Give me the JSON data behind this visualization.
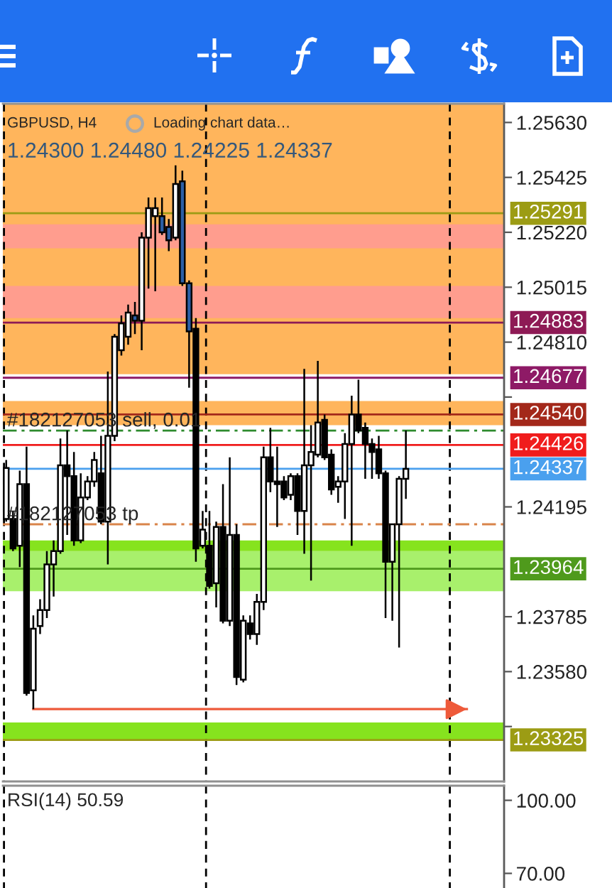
{
  "chart_data": [
    {
      "type": "candlestick",
      "title": "GBPUSD, H4",
      "subtitle": "1.24300 1.24480 1.24225 1.24337",
      "annotations": [
        "Loading chart data…",
        {
          "text": "#182127053 sell, 0.01",
          "y": 1.2448
        },
        {
          "text": "#182127053 tp",
          "y": 1.2413
        }
      ],
      "categories": [
        null,
        null,
        null,
        null,
        null,
        null,
        null,
        null,
        null,
        null,
        null,
        null,
        null,
        null,
        null,
        null,
        null,
        null,
        null,
        null,
        null,
        null,
        null,
        null,
        null,
        null,
        null,
        null,
        null,
        null,
        null,
        null,
        null,
        null,
        null,
        null,
        null,
        null,
        null,
        null,
        null,
        null,
        null,
        null,
        null,
        null,
        null,
        null,
        null,
        null,
        null,
        null,
        null,
        null,
        null,
        null,
        null,
        null,
        null,
        null,
        null,
        null,
        null,
        null,
        null,
        null,
        null,
        null,
        null,
        null,
        null,
        null,
        null,
        null
      ],
      "ohlc": [
        [
          1.2415,
          1.2437,
          1.2414,
          1.2434
        ],
        [
          1.2415,
          1.2418,
          1.2403,
          1.2404
        ],
        [
          1.2405,
          1.2433,
          1.2397,
          1.2428
        ],
        [
          1.2428,
          1.2442,
          1.2349,
          1.235
        ],
        [
          1.2351,
          1.2379,
          1.2344,
          1.2374
        ],
        [
          1.2375,
          1.2385,
          1.2372,
          1.2381
        ],
        [
          1.2381,
          1.2403,
          1.2378,
          1.2398
        ],
        [
          1.2398,
          1.2407,
          1.2386,
          1.2403
        ],
        [
          1.2403,
          1.2445,
          1.2402,
          1.2435
        ],
        [
          1.2435,
          1.2448,
          1.2409,
          1.2431
        ],
        [
          1.2431,
          1.244,
          1.2405,
          1.2407
        ],
        [
          1.2407,
          1.2432,
          1.2406,
          1.2423
        ],
        [
          1.2423,
          1.2431,
          1.2422,
          1.2429
        ],
        [
          1.2429,
          1.244,
          1.2427,
          1.2437
        ],
        [
          1.2432,
          1.2446,
          1.2413,
          1.2414
        ],
        [
          1.2414,
          1.247,
          1.2398,
          1.2446
        ],
        [
          1.2446,
          1.2484,
          1.2444,
          1.2483
        ],
        [
          1.2478,
          1.2491,
          1.2476,
          1.2488
        ],
        [
          1.2483,
          1.2495,
          1.248,
          1.2492
        ],
        [
          1.2491,
          1.2496,
          1.2484,
          1.2489
        ],
        [
          1.2489,
          1.2522,
          1.2478,
          1.252
        ],
        [
          1.252,
          1.2535,
          1.2501,
          1.2531
        ],
        [
          1.2528,
          1.2535,
          1.25,
          1.2531
        ],
        [
          1.2528,
          1.2535,
          1.2521,
          1.2522
        ],
        [
          1.2524,
          1.2527,
          1.2515,
          1.2519
        ],
        [
          1.252,
          1.2547,
          1.2519,
          1.254
        ],
        [
          1.2541,
          1.2545,
          1.2502,
          1.2503
        ],
        [
          1.2503,
          1.2504,
          1.2464,
          1.2485
        ],
        [
          1.2486,
          1.249,
          1.2399,
          1.2404
        ],
        [
          1.2405,
          1.2418,
          1.2404,
          1.2411
        ],
        [
          1.2405,
          1.2418,
          1.2389,
          1.239
        ],
        [
          1.2391,
          1.2414,
          1.2382,
          1.2412
        ],
        [
          1.2412,
          1.2428,
          1.2376,
          1.2377
        ],
        [
          1.2377,
          1.2438,
          1.2375,
          1.2409
        ],
        [
          1.2409,
          1.2413,
          1.2353,
          1.2356
        ],
        [
          1.2355,
          1.2379,
          1.2354,
          1.2377
        ],
        [
          1.2376,
          1.2379,
          1.237,
          1.2372
        ],
        [
          1.2372,
          1.2387,
          1.2368,
          1.2384
        ],
        [
          1.2384,
          1.2442,
          1.2381,
          1.2438
        ],
        [
          1.2438,
          1.2449,
          1.2425,
          1.2429
        ],
        [
          1.2429,
          1.2442,
          1.2412,
          1.2428
        ],
        [
          1.2429,
          1.2431,
          1.2422,
          1.2423
        ],
        [
          1.2424,
          1.2432,
          1.2422,
          1.2431
        ],
        [
          1.2431,
          1.2432,
          1.2409,
          1.2418
        ],
        [
          1.2418,
          1.2471,
          1.2402,
          1.2435
        ],
        [
          1.2435,
          1.245,
          1.2392,
          1.244
        ],
        [
          1.2439,
          1.2474,
          1.2438,
          1.2451
        ],
        [
          1.2452,
          1.2454,
          1.2437,
          1.2438
        ],
        [
          1.2439,
          1.2441,
          1.2424,
          1.2426
        ],
        [
          1.2427,
          1.2431,
          1.2421,
          1.2429
        ],
        [
          1.2429,
          1.2447,
          1.2415,
          1.2443
        ],
        [
          1.2443,
          1.2461,
          1.2405,
          1.2454
        ],
        [
          1.2454,
          1.2467,
          1.2447,
          1.2448
        ],
        [
          1.2449,
          1.2451,
          1.243,
          1.2443
        ],
        [
          1.2443,
          1.2445,
          1.243,
          1.244
        ],
        [
          1.2441,
          1.2446,
          1.243,
          1.2432
        ],
        [
          1.2432,
          1.2433,
          1.2378,
          1.2399
        ],
        [
          1.2399,
          1.2413,
          1.2377,
          1.2413
        ],
        [
          1.2413,
          1.2431,
          1.2367,
          1.243
        ],
        [
          1.243,
          1.2448,
          1.24225,
          1.24337
        ],
        null,
        null,
        null,
        null,
        null,
        null,
        null,
        null,
        null,
        null,
        null,
        null,
        null,
        null
      ],
      "colors": [
        "#ffffff",
        "#000000",
        "#ffffff",
        "#000000",
        "#ffffff",
        "#ffffff",
        "#ffffff",
        "#ffffff",
        "#ffffff",
        "#000000",
        "#000000",
        "#ffffff",
        "#ffffff",
        "#ffffff",
        "#000000",
        "#ffffff",
        "#ffffff",
        "#ffffff",
        "#ffffff",
        "#2b5fa6",
        "#ffffff",
        "#ffffff",
        "#ffffff",
        "#2b5fa6",
        "#2b5fa6",
        "#ffffff",
        "#2b5fa6",
        "#2b5fa6",
        "#000000",
        "#ffffff",
        "#000000",
        "#ffffff",
        "#000000",
        "#ffffff",
        "#000000",
        "#ffffff",
        "#000000",
        "#ffffff",
        "#ffffff",
        "#000000",
        "#000000",
        "#000000",
        "#ffffff",
        "#000000",
        "#ffffff",
        "#ffffff",
        "#ffffff",
        "#000000",
        "#000000",
        "#ffffff",
        "#ffffff",
        "#ffffff",
        "#000000",
        "#000000",
        "#000000",
        "#000000",
        "#000000",
        "#ffffff",
        "#ffffff",
        "#ffffff",
        null,
        null,
        null,
        null,
        null,
        null,
        null,
        null,
        null,
        null,
        null,
        null,
        null,
        null
      ],
      "series": [
        {
          "type": "line",
          "color": "#ee5a3a",
          "values": [
            null,
            null,
            null,
            null,
            1.2344,
            1.2344,
            1.2344,
            1.2344,
            1.2344,
            1.2344,
            1.2344,
            1.2344,
            1.2344,
            1.2344,
            1.2344,
            1.2344,
            1.2344,
            1.2344,
            1.2344,
            1.2344,
            1.2344,
            1.2344,
            1.2344,
            1.2344,
            1.2344,
            1.2344,
            1.2344,
            1.2344,
            1.2344,
            1.2344,
            1.2344,
            1.2344,
            1.2344,
            1.2344,
            1.2344,
            1.2344,
            1.2344,
            1.2344,
            1.2344,
            1.2344,
            1.2344,
            1.2344,
            1.2344,
            1.2344,
            1.2344,
            1.2344,
            1.2344,
            1.2344,
            1.2344,
            1.2344,
            1.2344,
            1.2344,
            1.2344,
            1.2344,
            1.2344,
            1.2344,
            1.2344,
            1.2344,
            1.2344,
            1.2344,
            1.2344,
            1.2344,
            1.2344,
            1.2344,
            1.2344,
            1.2344,
            1.2344,
            1.2344,
            1.2344,
            null,
            null,
            null,
            null,
            null
          ]
        }
      ],
      "ylim": [
        1.2317,
        1.257
      ],
      "yticks": [
        {
          "value": 1.2563,
          "label": "1.25630"
        },
        {
          "value": 1.25425,
          "label": "1.25425"
        },
        {
          "value": 1.2522,
          "label": "1.25220"
        },
        {
          "value": 1.25015,
          "label": "1.25015"
        },
        {
          "value": 1.2481,
          "label": "1.24810"
        },
        {
          "value": 1.24605,
          "label": null
        },
        {
          "value": 1.24195,
          "label": "1.24195"
        },
        {
          "value": 1.23785,
          "label": "1.23785"
        },
        {
          "value": 1.2358,
          "label": "1.23580"
        },
        {
          "value": 1.23375,
          "label": null
        }
      ],
      "bands": [
        {
          "axis": "y",
          "from": 1.2469,
          "to": 1.257,
          "color": "#ffb55c"
        },
        {
          "axis": "y",
          "from": 1.2516,
          "to": 1.2525,
          "color": "#ff9d8e"
        },
        {
          "axis": "y",
          "from": 1.249,
          "to": 1.2502,
          "color": "#ff9d8e"
        },
        {
          "axis": "y",
          "from": 1.245,
          "to": 1.2459,
          "color": "#ffb55c"
        },
        {
          "axis": "y",
          "from": 1.2388,
          "to": 1.2403,
          "color": "#a8f06c"
        },
        {
          "axis": "y",
          "from": 1.2403,
          "to": 1.2407,
          "color": "#86e31e"
        },
        {
          "axis": "y",
          "from": 1.23325,
          "to": 1.2339,
          "color": "#86e31e"
        }
      ],
      "ref_lines": [
        {
          "axis": "y",
          "value": 1.25291,
          "label": "1.25291",
          "color": "#9c9c14"
        },
        {
          "axis": "y",
          "value": 1.24883,
          "label": "1.24883",
          "color": "#8e1a55"
        },
        {
          "axis": "y",
          "value": 1.24677,
          "label": "1.24677",
          "color": "#8e1a66"
        },
        {
          "axis": "y",
          "value": 1.2454,
          "label": "1.24540",
          "color": "#a3281a"
        },
        {
          "axis": "y",
          "value": 1.2448,
          "label": null,
          "color": "#2e8b2e",
          "line_style": "dashdot"
        },
        {
          "axis": "y",
          "value": 1.24426,
          "label": "1.24426",
          "color": "#f01c1c"
        },
        {
          "axis": "y",
          "value": 1.24337,
          "label": "1.24337",
          "color": "#4aa0ee"
        },
        {
          "axis": "y",
          "value": 1.2413,
          "label": null,
          "color": "#d9844a",
          "line_style": "dashdot"
        },
        {
          "axis": "y",
          "value": 1.23964,
          "label": "1.23964",
          "color": "#4f9a1c"
        },
        {
          "axis": "y",
          "value": 1.23325,
          "label": "1.23325",
          "color": "#9c9c14"
        }
      ],
      "tick_labels": "y"
    },
    {
      "type": "line",
      "title": "RSI(14) 50.59",
      "categories": [
        null,
        null,
        null,
        null,
        null,
        null,
        null,
        null,
        null,
        null,
        null,
        null,
        null,
        null,
        null,
        null,
        null,
        null,
        null,
        null,
        null,
        null,
        null,
        null,
        null,
        null,
        null,
        null,
        null,
        null,
        null,
        null,
        null,
        null,
        null,
        null,
        null,
        null,
        null,
        null,
        null,
        null,
        null,
        null,
        null,
        null,
        null,
        null,
        null,
        null,
        null,
        null,
        null,
        null,
        null,
        null,
        null,
        null,
        null,
        null,
        null,
        null,
        null,
        null,
        null,
        null,
        null,
        null,
        null,
        null,
        null,
        null,
        null,
        null
      ],
      "ylim": [
        64,
        106
      ],
      "yticks": [
        {
          "value": 100,
          "label": "100.00"
        },
        {
          "value": 70,
          "label": "70.00"
        }
      ],
      "tick_labels": "y"
    }
  ]
}
